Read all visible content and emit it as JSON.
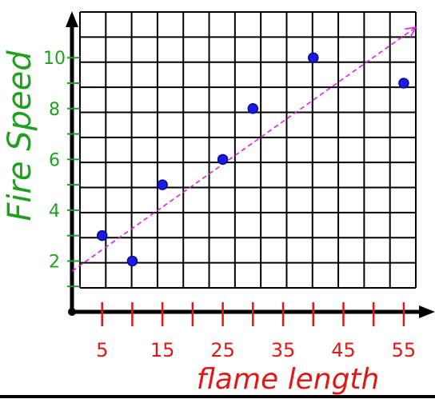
{
  "chart_data": {
    "type": "scatter",
    "title": "",
    "xlabel": "flame length",
    "ylabel": "Fire Speed",
    "x_tick_labels": [
      "5",
      "15",
      "25",
      "35",
      "45",
      "55"
    ],
    "x_tick_values": [
      5,
      15,
      25,
      35,
      45,
      55
    ],
    "y_tick_labels": [
      "2",
      "4",
      "6",
      "8",
      "10"
    ],
    "y_tick_values": [
      2,
      4,
      6,
      8,
      10
    ],
    "xlim": [
      0,
      57
    ],
    "ylim": [
      0,
      11.8
    ],
    "grid": true,
    "points": [
      {
        "x": 5,
        "y": 3
      },
      {
        "x": 10,
        "y": 2
      },
      {
        "x": 15,
        "y": 5
      },
      {
        "x": 25,
        "y": 6
      },
      {
        "x": 30,
        "y": 8
      },
      {
        "x": 40,
        "y": 10
      },
      {
        "x": 55,
        "y": 9
      }
    ],
    "trend_line": {
      "x": [
        0,
        57
      ],
      "y": [
        1.6,
        11.2
      ]
    },
    "colors": {
      "points": "#1a1ae6",
      "trend": "#e020e0",
      "axis_labels_y": "#1fa01f",
      "axis_labels_x": "#e01818",
      "grid": "#000000"
    }
  }
}
